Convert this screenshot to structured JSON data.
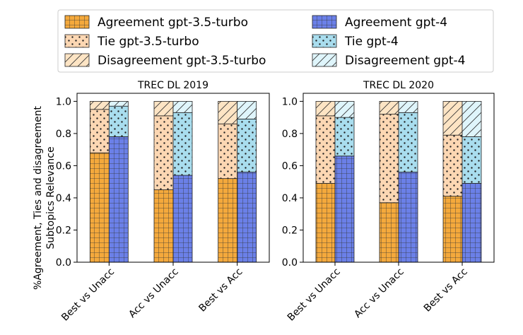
{
  "chart_data": {
    "type": "bar",
    "stacked": true,
    "ylabel": "%Agreement, Ties and disagreement\nSubtopics Relevance",
    "ylim": [
      0,
      1.05
    ],
    "yticks": [
      "0.0",
      "0.2",
      "0.4",
      "0.6",
      "0.8",
      "1.0"
    ],
    "legend_position": "top",
    "legend": [
      {
        "label": "Agreement gpt-3.5-turbo",
        "color": "#f4a93c",
        "hatch": "grid"
      },
      {
        "label": "Agreement gpt-4",
        "color": "#6b80e8",
        "hatch": "grid"
      },
      {
        "label": "Tie gpt-3.5-turbo",
        "color": "#fcd7b3",
        "hatch": "dots"
      },
      {
        "label": "Tie gpt-4",
        "color": "#a9ddee",
        "hatch": "dots"
      },
      {
        "label": "Disagreement gpt-3.5-turbo",
        "color": "#fde4c4",
        "hatch": "slash"
      },
      {
        "label": "Disagreement gpt-4",
        "color": "#dff5fb",
        "hatch": "slash"
      }
    ],
    "panels": [
      {
        "title": "TREC DL 2019",
        "categories": [
          "Best vs Unacc",
          "Acc vs Unacc",
          "Best vs Acc"
        ],
        "gpt35": {
          "agreement": [
            0.68,
            0.45,
            0.52
          ],
          "tie": [
            0.27,
            0.46,
            0.34
          ],
          "disagreement": [
            0.05,
            0.09,
            0.14
          ]
        },
        "gpt4": {
          "agreement": [
            0.78,
            0.54,
            0.56
          ],
          "tie": [
            0.19,
            0.39,
            0.33
          ],
          "disagreement": [
            0.03,
            0.07,
            0.11
          ]
        }
      },
      {
        "title": "TREC DL 2020",
        "categories": [
          "Best vs Unacc",
          "Acc vs Unacc",
          "Best vs Acc"
        ],
        "gpt35": {
          "agreement": [
            0.49,
            0.37,
            0.41
          ],
          "tie": [
            0.42,
            0.55,
            0.38
          ],
          "disagreement": [
            0.09,
            0.08,
            0.21
          ]
        },
        "gpt4": {
          "agreement": [
            0.66,
            0.56,
            0.49
          ],
          "tie": [
            0.24,
            0.37,
            0.29
          ],
          "disagreement": [
            0.1,
            0.07,
            0.22
          ]
        }
      }
    ]
  }
}
